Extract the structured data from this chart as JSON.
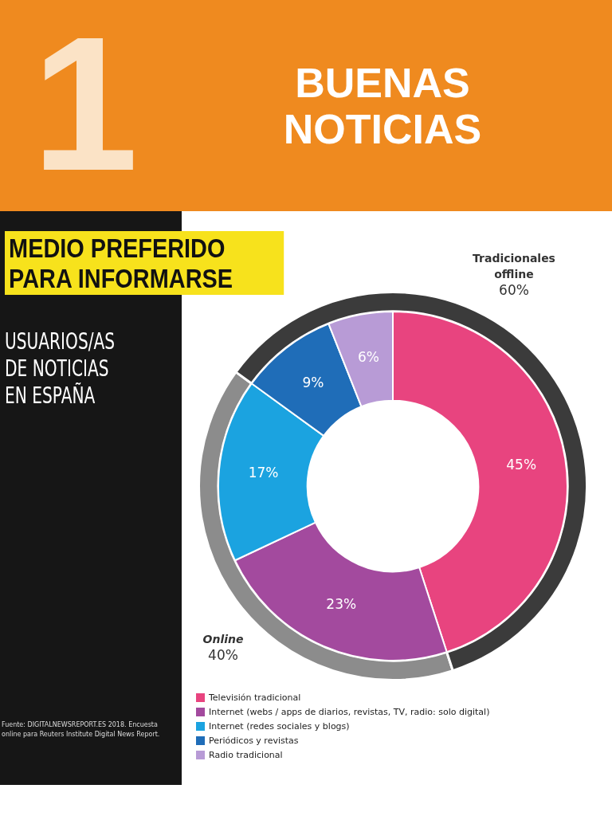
{
  "chart_data": [
    {
      "type": "donut",
      "title": "MEDIO PREFERIDO PARA INFORMARSE",
      "subtitle": "USUARIOS/AS DE NOTICIAS EN ESPAÑA",
      "categories": [
        "Televisión tradicional",
        "Internet (webs / apps de diarios, revistas, TV, radio: solo digital)",
        "Internet (redes sociales y blogs)",
        "Periódicos y revistas",
        "Radio tradicional"
      ],
      "values": [
        45,
        23,
        17,
        9,
        6
      ],
      "colors": [
        "#e8447f",
        "#a34a9e",
        "#1ba3e0",
        "#1f6db8",
        "#b89bd6"
      ],
      "value_labels": [
        "45%",
        "23%",
        "17%",
        "9%",
        "6%"
      ],
      "legend": "bottom",
      "annotations": [
        "1",
        "BUENAS NOTICIAS",
        "Fuente: DIGITALNEWSREPORT.ES 2018. Encuesta online para Reuters Institute Digital News Report."
      ]
    },
    {
      "type": "donut",
      "categories": [
        "Online",
        "Tradicionales offline"
      ],
      "values": [
        40,
        60
      ],
      "colors": [
        "#8c8c8c",
        "#3b3b3b"
      ],
      "value_labels": [
        "40%",
        "60%"
      ]
    }
  ]
}
